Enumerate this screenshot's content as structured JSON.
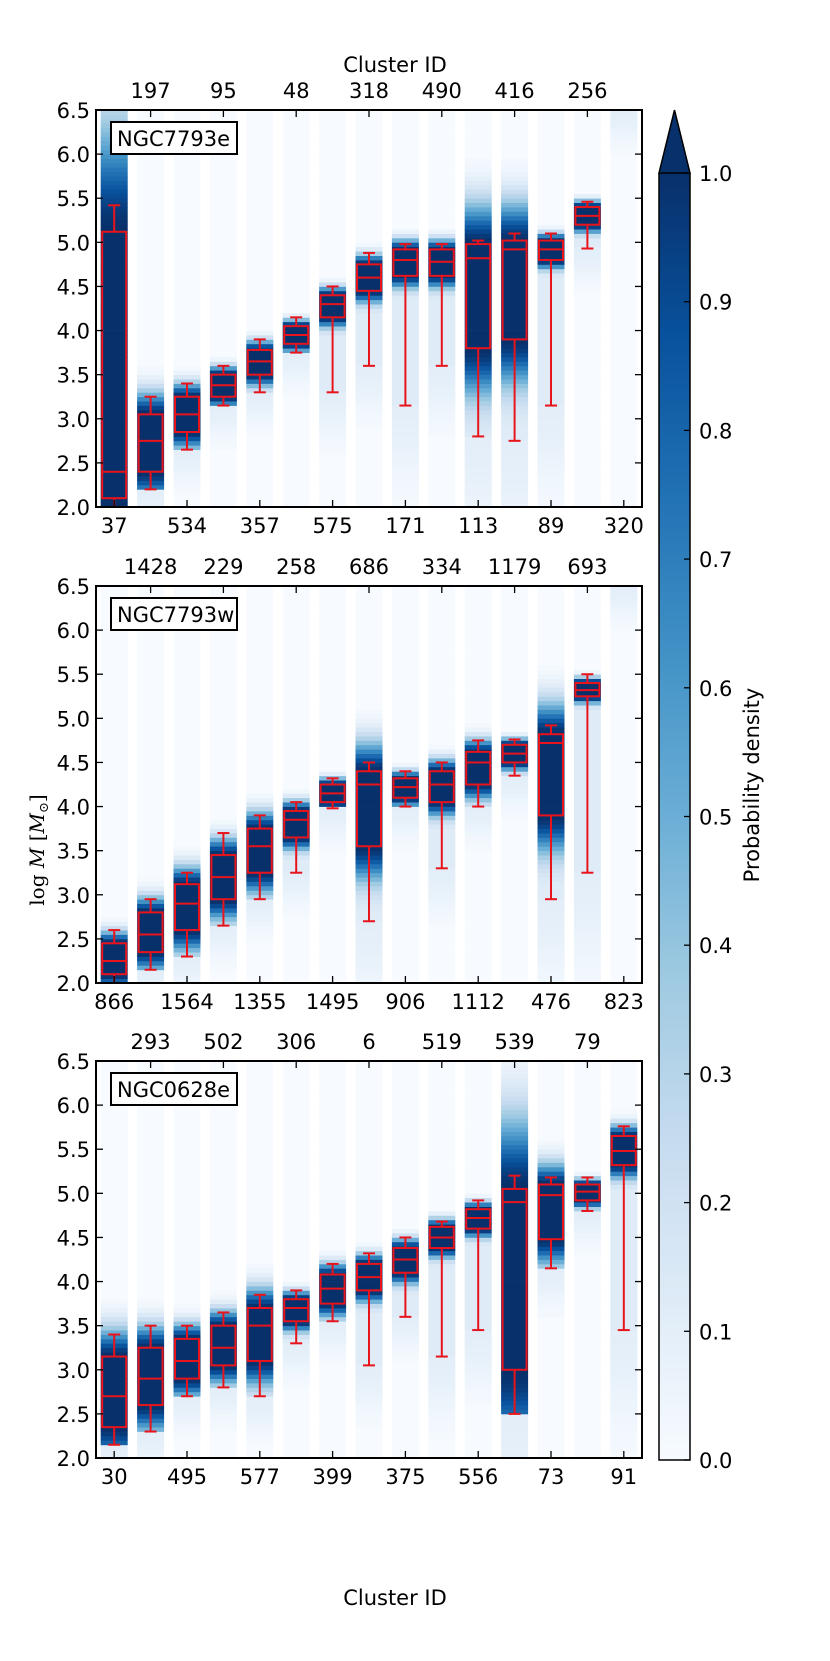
{
  "chart_data": {
    "type": "box-density",
    "top_xlabel": "Cluster ID",
    "bottom_xlabel": "Cluster ID",
    "ylabel": "log M [M⊙]",
    "ylabel_parts": {
      "base": "log ",
      "var": "M",
      "unit_open": " [",
      "unit_var": "M",
      "unit_sub": "⊙",
      "unit_close": "]"
    },
    "ylim": [
      2.0,
      6.5
    ],
    "yticks": [
      "2.0",
      "2.5",
      "3.0",
      "3.5",
      "4.0",
      "4.5",
      "5.0",
      "5.5",
      "6.0",
      "6.5"
    ],
    "colorbar": {
      "label": "Probability density",
      "range": [
        0.0,
        1.0
      ],
      "ticks": [
        "0.0",
        "0.1",
        "0.2",
        "0.3",
        "0.4",
        "0.5",
        "0.6",
        "0.7",
        "0.8",
        "0.9",
        "1.0"
      ],
      "extend": "max",
      "colormap": "Blues"
    },
    "colors": {
      "box": "#e8141c",
      "axis": "#000000",
      "density_high": "#08306b",
      "density_low": "#f7fbff"
    },
    "panels": [
      {
        "name": "NGC7793e",
        "bottom_ids": [
          "37",
          "534",
          "357",
          "575",
          "171",
          "113",
          "89",
          "320"
        ],
        "top_ids": [
          "197",
          "95",
          "48",
          "318",
          "490",
          "416",
          "256"
        ],
        "boxes": [
          {
            "wlo": 2.0,
            "q1": 2.1,
            "med": 2.4,
            "q3": 5.12,
            "whi": 5.42
          },
          {
            "wlo": 2.2,
            "q1": 2.4,
            "med": 2.75,
            "q3": 3.05,
            "whi": 3.25
          },
          {
            "wlo": 2.65,
            "q1": 2.85,
            "med": 3.05,
            "q3": 3.25,
            "whi": 3.4
          },
          {
            "wlo": 3.15,
            "q1": 3.25,
            "med": 3.38,
            "q3": 3.5,
            "whi": 3.6
          },
          {
            "wlo": 3.3,
            "q1": 3.5,
            "med": 3.65,
            "q3": 3.78,
            "whi": 3.9
          },
          {
            "wlo": 3.75,
            "q1": 3.85,
            "med": 3.95,
            "q3": 4.05,
            "whi": 4.15
          },
          {
            "wlo": 3.3,
            "q1": 4.15,
            "med": 4.3,
            "q3": 4.4,
            "whi": 4.5
          },
          {
            "wlo": 3.6,
            "q1": 4.45,
            "med": 4.6,
            "q3": 4.75,
            "whi": 4.88
          },
          {
            "wlo": 3.15,
            "q1": 4.62,
            "med": 4.8,
            "q3": 4.92,
            "whi": 4.98
          },
          {
            "wlo": 3.6,
            "q1": 4.62,
            "med": 4.78,
            "q3": 4.92,
            "whi": 4.98
          },
          {
            "wlo": 2.8,
            "q1": 3.8,
            "med": 4.82,
            "q3": 4.98,
            "whi": 5.02
          },
          {
            "wlo": 2.75,
            "q1": 3.9,
            "med": 4.92,
            "q3": 5.02,
            "whi": 5.1
          },
          {
            "wlo": 3.15,
            "q1": 4.8,
            "med": 4.92,
            "q3": 5.02,
            "whi": 5.1
          },
          {
            "wlo": 4.93,
            "q1": 5.2,
            "med": 5.3,
            "q3": 5.4,
            "whi": 5.46
          },
          {
            "wlo": 6.5,
            "q1": 6.5,
            "med": 6.5,
            "q3": 6.5,
            "whi": 6.5
          }
        ]
      },
      {
        "name": "NGC7793w",
        "bottom_ids": [
          "866",
          "1564",
          "1355",
          "1495",
          "906",
          "1112",
          "476",
          "823"
        ],
        "top_ids": [
          "1428",
          "229",
          "258",
          "686",
          "334",
          "1179",
          "693"
        ],
        "boxes": [
          {
            "wlo": 2.0,
            "q1": 2.1,
            "med": 2.25,
            "q3": 2.45,
            "whi": 2.6
          },
          {
            "wlo": 2.15,
            "q1": 2.35,
            "med": 2.55,
            "q3": 2.8,
            "whi": 2.95
          },
          {
            "wlo": 2.3,
            "q1": 2.6,
            "med": 2.9,
            "q3": 3.12,
            "whi": 3.25
          },
          {
            "wlo": 2.65,
            "q1": 2.95,
            "med": 3.2,
            "q3": 3.45,
            "whi": 3.7
          },
          {
            "wlo": 2.95,
            "q1": 3.25,
            "med": 3.55,
            "q3": 3.75,
            "whi": 3.9
          },
          {
            "wlo": 3.25,
            "q1": 3.65,
            "med": 3.85,
            "q3": 3.95,
            "whi": 4.05
          },
          {
            "wlo": 3.98,
            "q1": 4.05,
            "med": 4.15,
            "q3": 4.25,
            "whi": 4.32
          },
          {
            "wlo": 2.7,
            "q1": 3.55,
            "med": 4.25,
            "q3": 4.4,
            "whi": 4.5
          },
          {
            "wlo": 4.0,
            "q1": 4.1,
            "med": 4.22,
            "q3": 4.32,
            "whi": 4.4
          },
          {
            "wlo": 3.3,
            "q1": 4.05,
            "med": 4.25,
            "q3": 4.4,
            "whi": 4.5
          },
          {
            "wlo": 4.0,
            "q1": 4.25,
            "med": 4.5,
            "q3": 4.62,
            "whi": 4.75
          },
          {
            "wlo": 4.35,
            "q1": 4.5,
            "med": 4.6,
            "q3": 4.7,
            "whi": 4.76
          },
          {
            "wlo": 2.95,
            "q1": 3.9,
            "med": 4.72,
            "q3": 4.82,
            "whi": 4.92
          },
          {
            "wlo": 3.25,
            "q1": 5.25,
            "med": 5.32,
            "q3": 5.4,
            "whi": 5.5
          },
          {
            "wlo": 6.5,
            "q1": 6.5,
            "med": 6.5,
            "q3": 6.5,
            "whi": 6.5
          }
        ]
      },
      {
        "name": "NGC0628e",
        "bottom_ids": [
          "30",
          "495",
          "577",
          "399",
          "375",
          "556",
          "73",
          "91"
        ],
        "top_ids": [
          "293",
          "502",
          "306",
          "6",
          "519",
          "539",
          "79"
        ],
        "boxes": [
          {
            "wlo": 2.15,
            "q1": 2.35,
            "med": 2.7,
            "q3": 3.15,
            "whi": 3.4
          },
          {
            "wlo": 2.3,
            "q1": 2.6,
            "med": 2.9,
            "q3": 3.25,
            "whi": 3.5
          },
          {
            "wlo": 2.7,
            "q1": 2.9,
            "med": 3.1,
            "q3": 3.35,
            "whi": 3.5
          },
          {
            "wlo": 2.8,
            "q1": 3.05,
            "med": 3.25,
            "q3": 3.5,
            "whi": 3.65
          },
          {
            "wlo": 2.7,
            "q1": 3.1,
            "med": 3.5,
            "q3": 3.7,
            "whi": 3.85
          },
          {
            "wlo": 3.3,
            "q1": 3.55,
            "med": 3.7,
            "q3": 3.8,
            "whi": 3.9
          },
          {
            "wlo": 3.55,
            "q1": 3.75,
            "med": 3.92,
            "q3": 4.08,
            "whi": 4.2
          },
          {
            "wlo": 3.05,
            "q1": 3.9,
            "med": 4.05,
            "q3": 4.2,
            "whi": 4.32
          },
          {
            "wlo": 3.6,
            "q1": 4.1,
            "med": 4.25,
            "q3": 4.38,
            "whi": 4.5
          },
          {
            "wlo": 3.15,
            "q1": 4.38,
            "med": 4.5,
            "q3": 4.62,
            "whi": 4.68
          },
          {
            "wlo": 3.45,
            "q1": 4.6,
            "med": 4.72,
            "q3": 4.82,
            "whi": 4.92
          },
          {
            "wlo": 2.5,
            "q1": 3.0,
            "med": 4.9,
            "q3": 5.05,
            "whi": 5.2
          },
          {
            "wlo": 4.15,
            "q1": 4.48,
            "med": 4.98,
            "q3": 5.1,
            "whi": 5.18
          },
          {
            "wlo": 4.8,
            "q1": 4.92,
            "med": 5.02,
            "q3": 5.1,
            "whi": 5.18
          },
          {
            "wlo": 3.45,
            "q1": 5.32,
            "med": 5.48,
            "q3": 5.65,
            "whi": 5.76
          }
        ]
      }
    ]
  }
}
